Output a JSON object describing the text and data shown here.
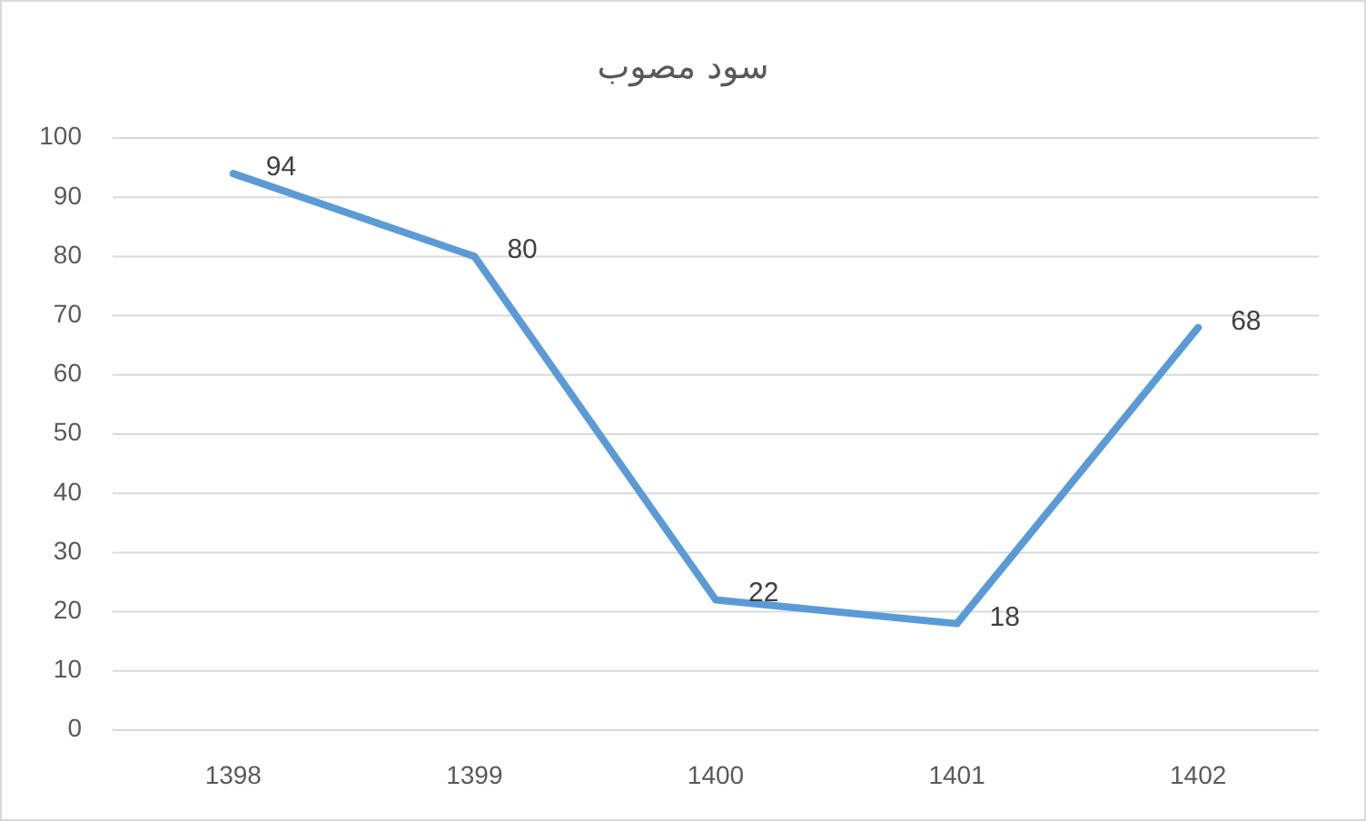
{
  "chart_data": {
    "type": "line",
    "title": "سود مصوب",
    "categories": [
      "1398",
      "1399",
      "1400",
      "1401",
      "1402"
    ],
    "series": [
      {
        "color": "#5b9bd5",
        "values": [
          94,
          80,
          22,
          18,
          68
        ]
      }
    ],
    "ylim": [
      0,
      100
    ],
    "yticks": [
      0,
      10,
      20,
      30,
      40,
      50,
      60,
      70,
      80,
      90,
      100
    ],
    "grid": "y",
    "data_labels": true,
    "marker": "none",
    "line_style": "solid"
  }
}
